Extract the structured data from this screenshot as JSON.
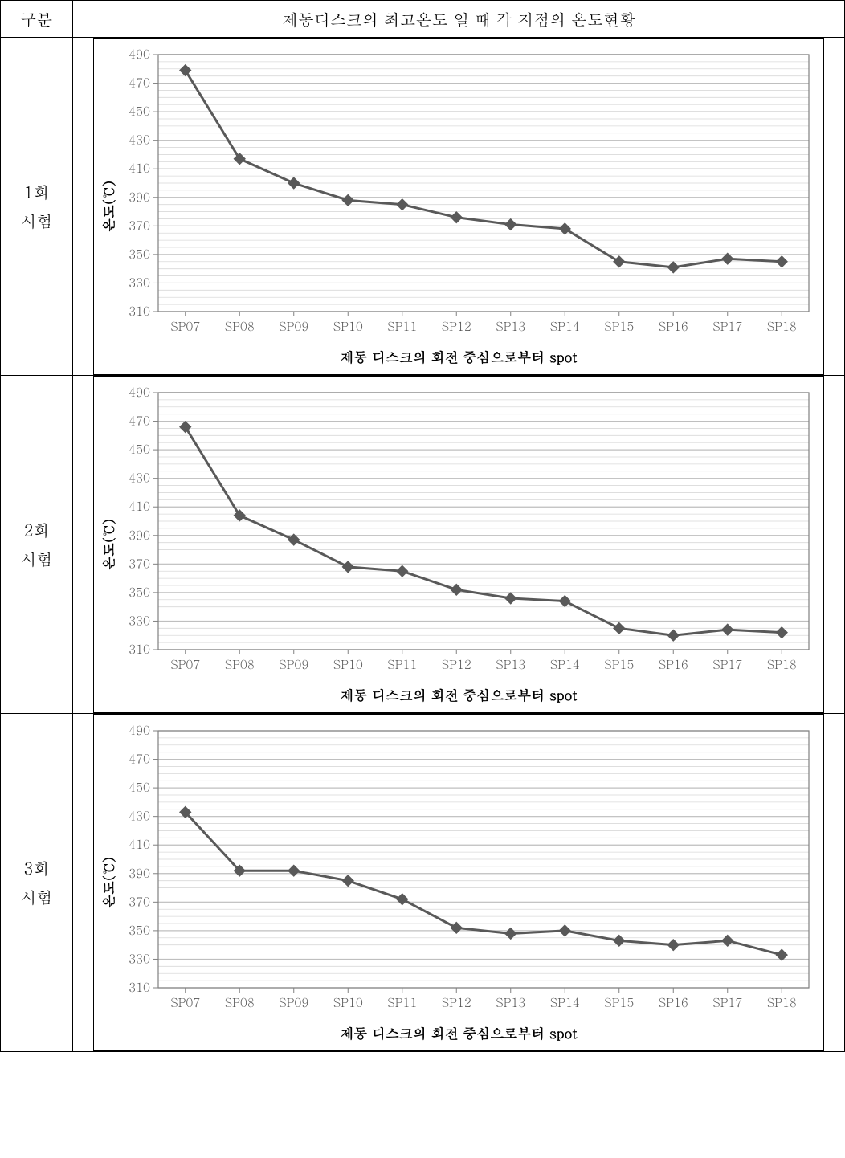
{
  "table": {
    "header_left": "구분",
    "header_main": "제동디스크의 최고온도 일 때 각 지점의 온도현황",
    "row_labels": [
      "1회\n시험",
      "2회\n시험",
      "3회\n시험"
    ]
  },
  "chart_common": {
    "categories": [
      "SP07",
      "SP08",
      "SP09",
      "SP10",
      "SP11",
      "SP12",
      "SP13",
      "SP14",
      "SP15",
      "SP16",
      "SP17",
      "SP18"
    ],
    "ylabel": "온도(℃)",
    "xlabel": "제동 디스크의 회전 중심으로부터 spot",
    "ylim": [
      310,
      490
    ],
    "ytick_step_major": 20,
    "ytick_step_minor": 5,
    "plot_bg": "#ffffff",
    "outer_bg": "#ffffff",
    "major_grid_color": "#bfbfbf",
    "minor_grid_color": "#d9d9d9",
    "axis_color": "#808080",
    "line_color": "#595959",
    "line_width": 3,
    "marker_size": 7,
    "tick_fontsize": 15,
    "label_fontsize": 17,
    "label_fontweight": "bold",
    "tick_color": "#595959"
  },
  "charts": [
    {
      "values": [
        479,
        417,
        400,
        388,
        385,
        376,
        371,
        368,
        345,
        341,
        347,
        345
      ]
    },
    {
      "values": [
        466,
        404,
        387,
        368,
        365,
        352,
        346,
        344,
        325,
        320,
        324,
        322
      ]
    },
    {
      "values": [
        433,
        392,
        392,
        385,
        372,
        352,
        348,
        350,
        343,
        340,
        343,
        333
      ]
    }
  ]
}
